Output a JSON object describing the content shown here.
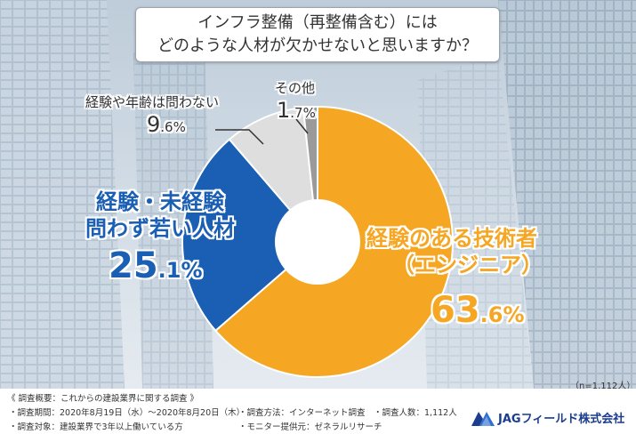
{
  "title": {
    "line1": "インフラ整備（再整備含む）には",
    "line2": "どのような人材が欠かせないと思いますか？"
  },
  "chart_data": {
    "type": "pie",
    "donut": true,
    "slices": [
      {
        "label_line1": "経験のある技術者",
        "label_line2": "（エンジニア）",
        "value": 63.6,
        "value_int": "63",
        "value_dec": ".6%",
        "color": "#f5a623"
      },
      {
        "label_line1": "経験・未経験",
        "label_line2": "問わず若い人材",
        "value": 25.1,
        "value_int": "25",
        "value_dec": ".1%",
        "color": "#1a5fb4"
      },
      {
        "label_line1": "経験や年齢は問わない",
        "label_line2": "",
        "value": 9.6,
        "value_int": "9",
        "value_dec": ".6%",
        "color": "#dedede"
      },
      {
        "label_line1": "その他",
        "label_line2": "",
        "value": 1.7,
        "value_int": "1",
        "value_dec": ".7%",
        "color": "#9a9a9a"
      }
    ]
  },
  "sample_size": "（n=1,112人）",
  "footer": {
    "heading": "《 調査概要：これからの建設業界に関する調査 》",
    "period": "・調査期間：2020年8月19日（水）〜2020年8月20日（木）",
    "method": "・調査方法：インターネット調査",
    "count": "・調査人数：1,112人",
    "target": "・調査対象：建設業界で3年以上働いている方",
    "provider": "・モニター提供元：ゼネラルリサーチ",
    "brand": "JAGフィールド株式会社"
  },
  "colors": {
    "orange": "#f5a623",
    "blue": "#1a5fb4",
    "light_gray": "#dedede",
    "dark_gray": "#9a9a9a"
  }
}
